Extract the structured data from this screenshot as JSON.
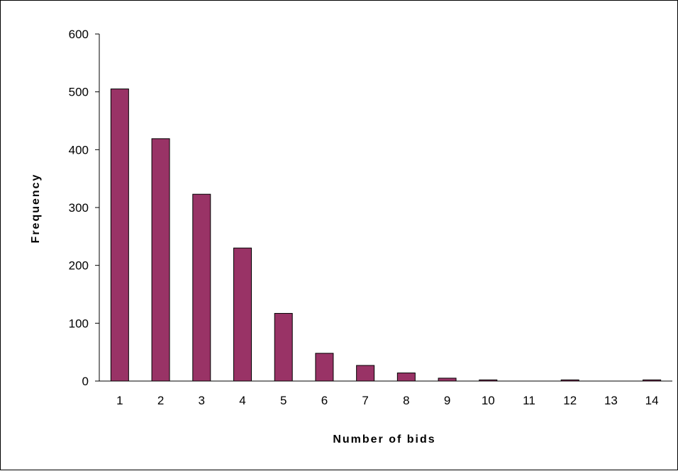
{
  "chart_data": {
    "type": "bar",
    "title": "",
    "xlabel": "Number of bids",
    "ylabel": "Frequency",
    "categories": [
      "1",
      "2",
      "3",
      "4",
      "5",
      "6",
      "7",
      "8",
      "9",
      "10",
      "11",
      "12",
      "13",
      "14"
    ],
    "values": [
      505,
      419,
      323,
      230,
      117,
      48,
      27,
      14,
      5,
      2,
      0,
      2,
      0,
      2
    ],
    "ylim": [
      0,
      600
    ],
    "yticks": [
      "0",
      "100",
      "200",
      "300",
      "400",
      "500",
      "600"
    ],
    "grid": false,
    "legend": "none",
    "bar_color": "#993366",
    "bar_edge_color": "#000000"
  }
}
